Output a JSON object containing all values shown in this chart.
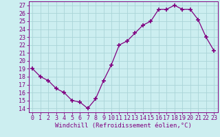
{
  "x": [
    0,
    1,
    2,
    3,
    4,
    5,
    6,
    7,
    8,
    9,
    10,
    11,
    12,
    13,
    14,
    15,
    16,
    17,
    18,
    19,
    20,
    21,
    22,
    23
  ],
  "y": [
    19,
    18,
    17.5,
    16.5,
    16,
    15,
    14.8,
    14,
    15.2,
    17.5,
    19.5,
    22,
    22.5,
    23.5,
    24.5,
    25,
    26.5,
    26.5,
    27,
    26.5,
    26.5,
    25.2,
    23,
    21.3
  ],
  "line_color": "#800080",
  "marker": "+",
  "marker_size": 5,
  "background_color": "#cceef0",
  "grid_color": "#aad4d8",
  "xlabel": "Windchill (Refroidissement éolien,°C)",
  "ylabel_ticks": [
    14,
    15,
    16,
    17,
    18,
    19,
    20,
    21,
    22,
    23,
    24,
    25,
    26,
    27
  ],
  "ylim": [
    13.5,
    27.5
  ],
  "xlim": [
    -0.5,
    23.5
  ],
  "xlabel_fontsize": 6.5,
  "tick_fontsize": 6.0,
  "tick_color": "#800080",
  "spine_color": "#800080"
}
